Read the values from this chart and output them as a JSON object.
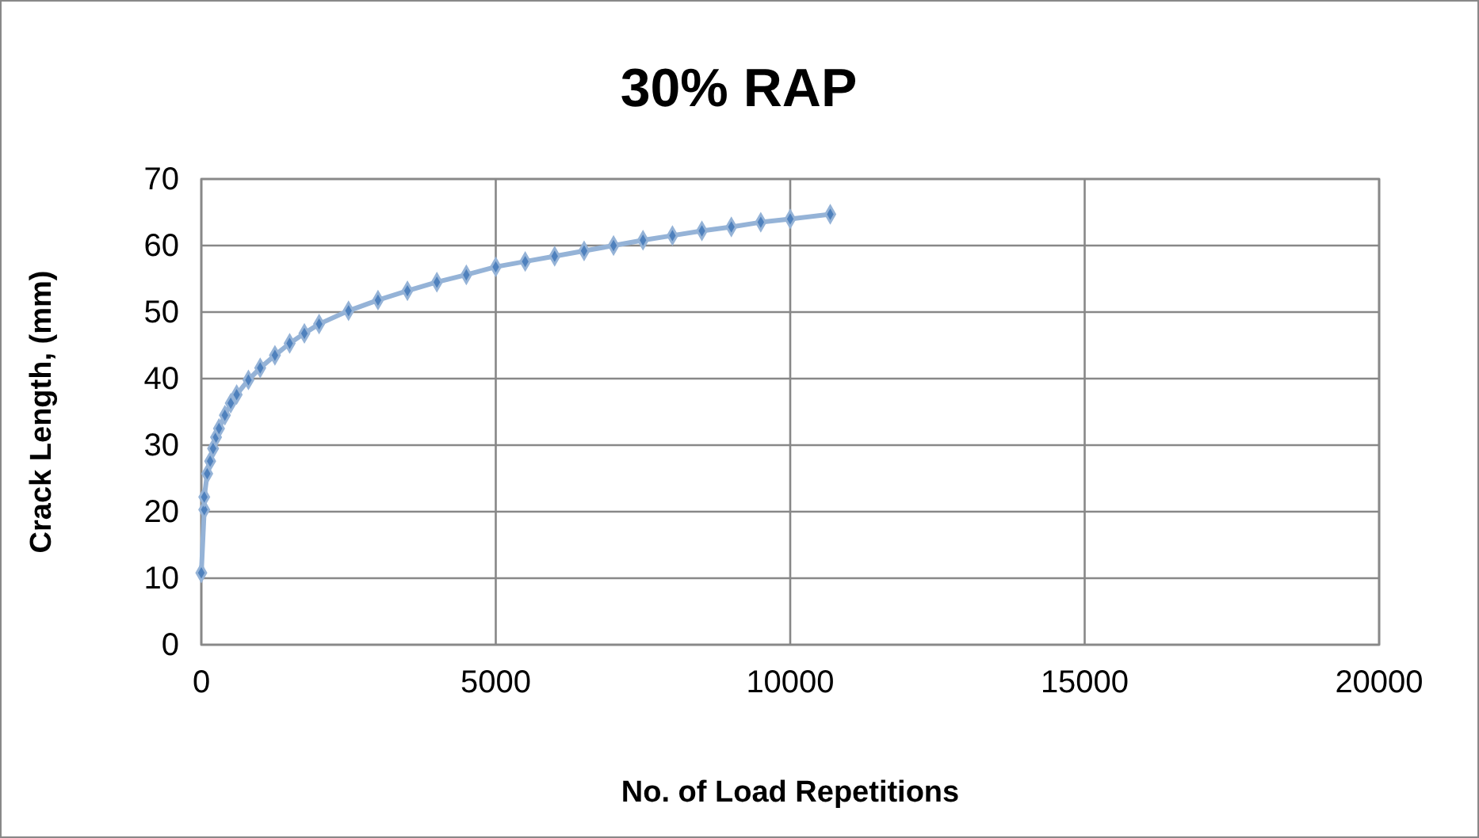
{
  "chart_data": {
    "type": "line",
    "title": "30% RAP",
    "xlabel": "No. of Load Repetitions",
    "ylabel": "Crack Length, (mm)",
    "xlim": [
      0,
      20000
    ],
    "xticks": [
      0,
      5000,
      10000,
      15000,
      20000
    ],
    "ylim": [
      0,
      70
    ],
    "yticks": [
      0,
      10,
      20,
      30,
      40,
      50,
      60,
      70
    ],
    "grid": true,
    "marker": "diamond",
    "line_style": "solid",
    "series": [
      {
        "color": "#95b3d7",
        "x": [
          0,
          50,
          50,
          100,
          150,
          200,
          250,
          300,
          400,
          500,
          600,
          800,
          1000,
          1250,
          1500,
          1750,
          2000,
          2500,
          3000,
          3500,
          4000,
          4500,
          5000,
          5500,
          6000,
          6500,
          7000,
          7500,
          8000,
          8500,
          9000,
          9500,
          10000,
          10680
        ],
        "values": [
          10.8,
          20.3,
          22.2,
          25.7,
          27.6,
          29.5,
          31.2,
          32.5,
          34.5,
          36.3,
          37.6,
          39.8,
          41.6,
          43.5,
          45.3,
          46.8,
          48.2,
          50.2,
          51.8,
          53.2,
          54.5,
          55.6,
          56.8,
          57.6,
          58.4,
          59.2,
          60.0,
          60.8,
          61.5,
          62.2,
          62.8,
          63.5,
          64.0,
          64.7
        ]
      }
    ]
  }
}
